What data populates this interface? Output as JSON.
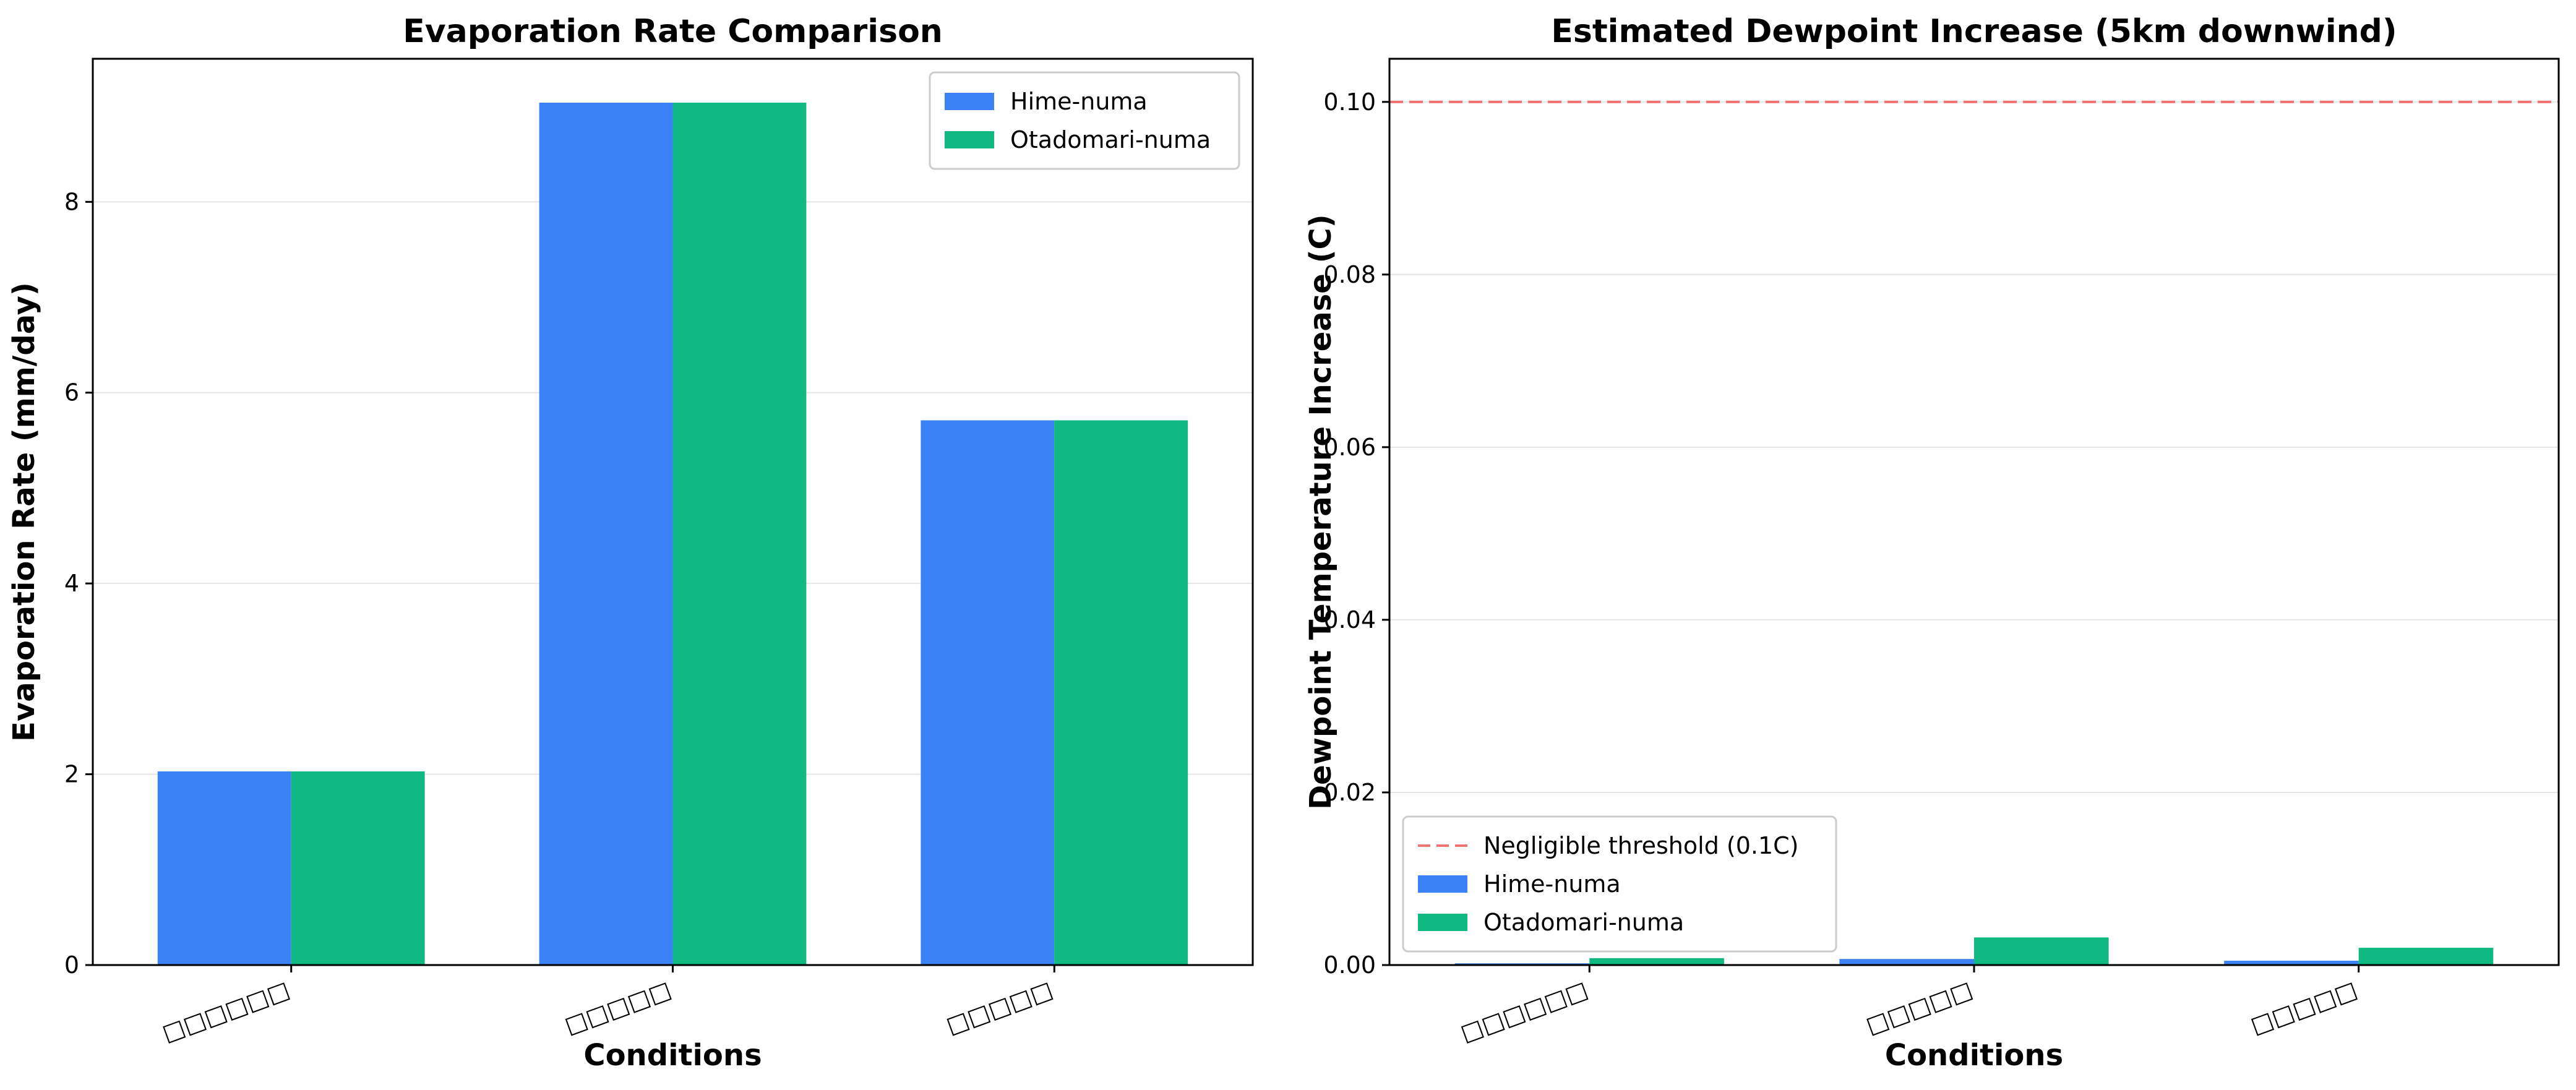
{
  "chart_data": [
    {
      "type": "bar",
      "title": "Evaporation Rate Comparison",
      "xlabel": "Conditions",
      "ylabel": "Evaporation Rate (mm/day)",
      "categories": [
        "□□□□□□",
        "□□□□□",
        "□□□□□"
      ],
      "series": [
        {
          "name": "Hime-numa",
          "color": "#3b82f6",
          "values": [
            2.03,
            9.04,
            5.71
          ]
        },
        {
          "name": "Otadomari-numa",
          "color": "#10b981",
          "values": [
            2.03,
            9.04,
            5.71
          ]
        }
      ],
      "ylim": [
        0,
        9.5
      ],
      "yticks": [
        0,
        2,
        4,
        6,
        8
      ],
      "ytick_labels": [
        "0",
        "2",
        "4",
        "6",
        "8"
      ],
      "grid": "y",
      "legend": {
        "position": "upper right",
        "entries": [
          "Hime-numa",
          "Otadomari-numa"
        ]
      }
    },
    {
      "type": "bar",
      "title": "Estimated Dewpoint Increase (5km downwind)",
      "xlabel": "Conditions",
      "ylabel": "Dewpoint Temperature Increase (C)",
      "categories": [
        "□□□□□□",
        "□□□□□",
        "□□□□□"
      ],
      "series": [
        {
          "name": "Hime-numa",
          "color": "#3b82f6",
          "values": [
            0.0002,
            0.0007,
            0.0005
          ]
        },
        {
          "name": "Otadomari-numa",
          "color": "#10b981",
          "values": [
            0.0008,
            0.0032,
            0.002
          ]
        }
      ],
      "reference_line": {
        "name": "Negligible threshold (0.1C)",
        "value": 0.1,
        "color": "#ef4444",
        "style": "dashed"
      },
      "ylim": [
        0,
        0.105
      ],
      "yticks": [
        0,
        0.02,
        0.04,
        0.06,
        0.08,
        0.1
      ],
      "ytick_labels": [
        "0.00",
        "0.02",
        "0.04",
        "0.06",
        "0.08",
        "0.10"
      ],
      "grid": "y",
      "legend": {
        "position": "lower left",
        "entries": [
          "Negligible threshold (0.1C)",
          "Hime-numa",
          "Otadomari-numa"
        ]
      }
    }
  ]
}
